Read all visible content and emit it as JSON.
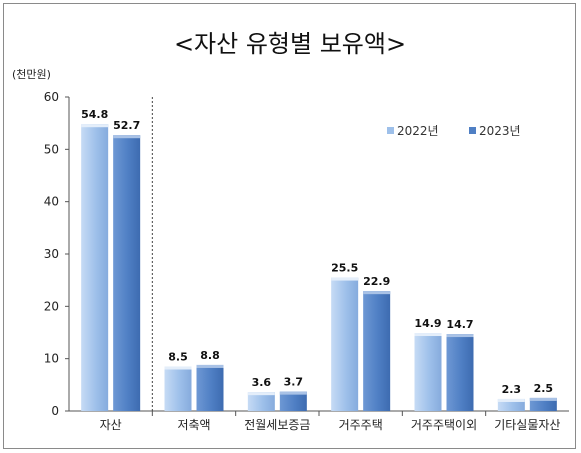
{
  "chart_data": {
    "type": "bar",
    "title": "<자산 유형별 보유액>",
    "unit_label": "(천만원)",
    "xlabel": "",
    "ylabel": "",
    "ylim": [
      0,
      60
    ],
    "yticks": [
      0,
      10,
      20,
      30,
      40,
      50,
      60
    ],
    "categories": [
      "자산",
      "저축액",
      "전월세보증금",
      "거주주택",
      "거주주택이외",
      "기타실물자산"
    ],
    "series": [
      {
        "name": "2022년",
        "values": [
          54.8,
          8.5,
          3.6,
          25.5,
          14.9,
          2.3
        ],
        "color": "#9ec0ea"
      },
      {
        "name": "2023년",
        "values": [
          52.7,
          8.8,
          3.7,
          22.9,
          14.7,
          2.5
        ],
        "color": "#4f7fc4"
      }
    ],
    "value_labels": [
      [
        "54.8",
        "8.5",
        "3.6",
        "25.5",
        "14.9",
        "2.3"
      ],
      [
        "52.7",
        "8.8",
        "3.7",
        "22.9",
        "14.7",
        "2.5"
      ]
    ],
    "legend_position": "top-right",
    "grid": false,
    "separator_after_first_category": true
  }
}
